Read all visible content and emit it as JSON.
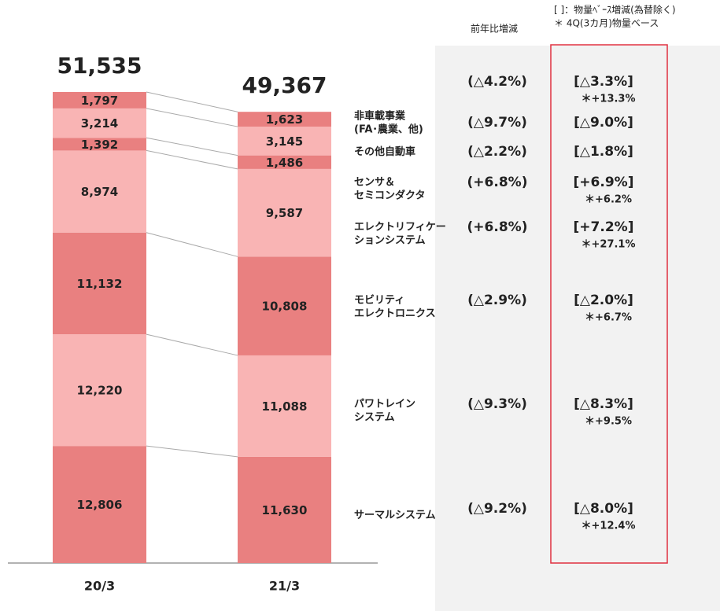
{
  "chart_data": {
    "type": "bar",
    "stacked": true,
    "categories": [
      "20/3",
      "21/3"
    ],
    "header": {
      "yoy": "前年比増減",
      "volume": "[ ]：物量ﾍﾞｰｽ増減(為替除く)",
      "note": "＊ 4Q(3カ月)物量ベース"
    },
    "totals": {
      "values": [
        51535,
        49367
      ],
      "value_labels": [
        "51,535",
        "49,367"
      ],
      "yoy": "(△4.2%)",
      "volume": "[△3.3%]",
      "note": "＊+13.3%"
    },
    "series": [
      {
        "name": "サーマルシステム",
        "color": "#e98080",
        "values": [
          12806,
          11630
        ],
        "value_labels": [
          "12,806",
          "11,630"
        ],
        "yoy": "(△9.2%)",
        "volume": "[△8.0%]",
        "note": "＊+12.4%"
      },
      {
        "name": "パワトレイン\nシステム",
        "color": "#f9b4b4",
        "values": [
          12220,
          11088
        ],
        "value_labels": [
          "12,220",
          "11,088"
        ],
        "yoy": "(△9.3%)",
        "volume": "[△8.3%]",
        "note": "＊+9.5%"
      },
      {
        "name": "モビリティ\nエレクトロニクス",
        "color": "#e98080",
        "values": [
          11132,
          10808
        ],
        "value_labels": [
          "11,132",
          "10,808"
        ],
        "yoy": "(△2.9%)",
        "volume": "[△2.0%]",
        "note": "＊+6.7%"
      },
      {
        "name": "エレクトリフィケー\nションシステム",
        "color": "#f9b4b4",
        "values": [
          8974,
          9587
        ],
        "value_labels": [
          "8,974",
          "9,587"
        ],
        "yoy": "(+6.8%)",
        "volume": "[+7.2%]",
        "note": "＊+27.1%"
      },
      {
        "name": "センサ＆\nセミコンダクタ",
        "color": "#e98080",
        "values": [
          1392,
          1486
        ],
        "value_labels": [
          "1,392",
          "1,486"
        ],
        "yoy": "(+6.8%)",
        "volume": "[+6.9%]",
        "note": "＊+6.2%"
      },
      {
        "name": "その他自動車",
        "color": "#f9b4b4",
        "values": [
          3214,
          3145
        ],
        "value_labels": [
          "3,214",
          "3,145"
        ],
        "yoy": "(△2.2%)",
        "volume": "[△1.8%]",
        "note": null
      },
      {
        "name": "非車載事業\n(FA･農業、他)",
        "color": "#e98080",
        "values": [
          1797,
          1623
        ],
        "value_labels": [
          "1,797",
          "1,623"
        ],
        "yoy": "(△9.7%)",
        "volume": "[△9.0%]",
        "note": null
      }
    ]
  }
}
